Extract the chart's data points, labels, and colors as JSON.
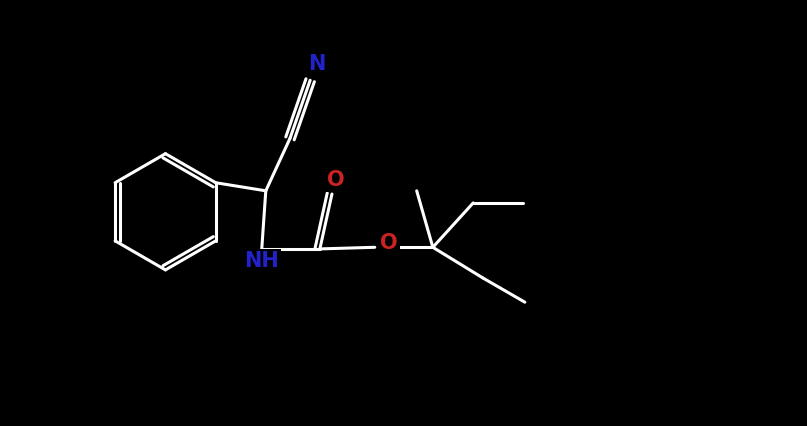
{
  "background_color": "#000000",
  "bond_color": "#ffffff",
  "atom_colors": {
    "N": "#2222cc",
    "O": "#cc2222",
    "C": "#ffffff",
    "H": "#ffffff"
  },
  "bond_width": 2.2,
  "font_size_atom": 15,
  "fig_width": 8.07,
  "fig_height": 4.26,
  "dpi": 100,
  "xlim": [
    0,
    10
  ],
  "ylim": [
    0,
    5.27
  ]
}
